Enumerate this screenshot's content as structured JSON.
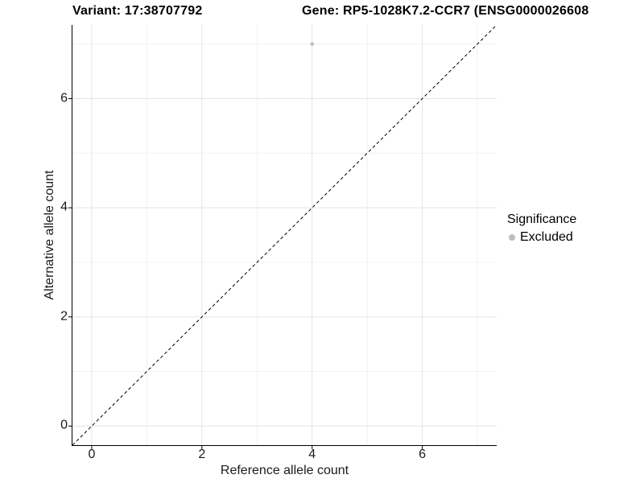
{
  "chart_data": {
    "type": "scatter",
    "titles": {
      "left": "Variant: 17:38707792",
      "right": "Gene: RP5-1028K7.2-CCR7 (ENSG0000026608"
    },
    "xlabel": "Reference allele count",
    "ylabel": "Alternative allele count",
    "xlim": [
      -0.35,
      7.35
    ],
    "ylim": [
      -0.35,
      7.35
    ],
    "x_ticks": {
      "major": [
        0,
        2,
        4,
        6
      ],
      "minor": [
        1,
        3,
        5,
        7
      ]
    },
    "y_ticks": {
      "major": [
        0,
        2,
        4,
        6
      ],
      "minor": [
        1,
        3,
        5,
        7
      ]
    },
    "grid": "major+minor",
    "legend_position": "right",
    "series": [
      {
        "name": "Excluded",
        "color": "#bebebe",
        "marker": "circle",
        "points": [
          [
            4,
            7
          ]
        ]
      }
    ],
    "reference_line": {
      "kind": "identity y=x",
      "style": "dashed",
      "color": "#000000",
      "x0": -0.35,
      "y0": -0.35,
      "x1": 7.35,
      "y1": 7.35
    },
    "legend": {
      "title": "Significance",
      "items": [
        {
          "label": "Excluded",
          "color": "#bebebe",
          "marker": "circle"
        }
      ]
    }
  },
  "colors": {
    "background": "#ffffff",
    "grid_major": "#e3e3e3",
    "grid_minor": "#f1f1f1",
    "axis_line": "#000000",
    "tick_text": "#1a1a1a",
    "title_text": "#000000",
    "point": "#bebebe"
  }
}
